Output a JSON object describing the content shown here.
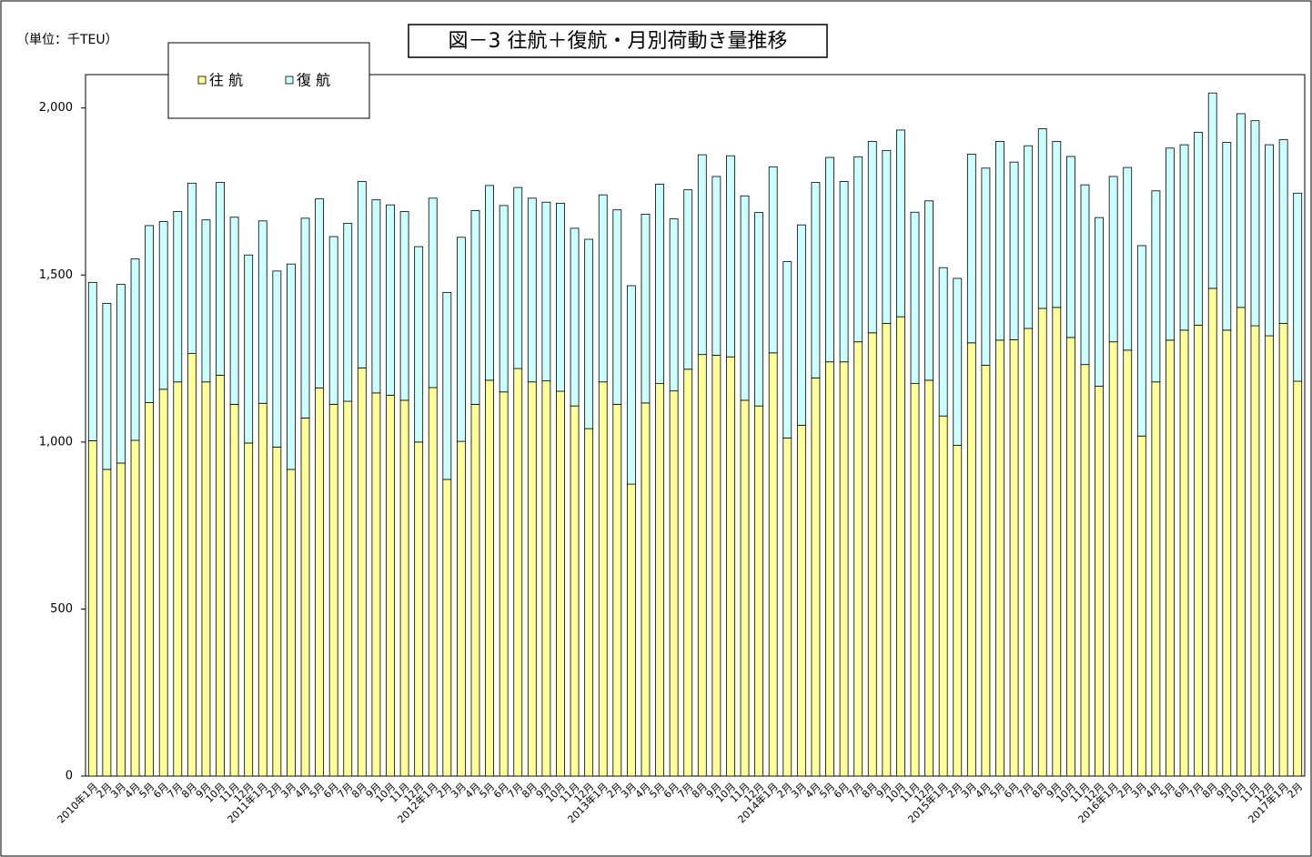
{
  "chart_data": {
    "type": "stacked-bar",
    "title": "図－3  往航＋復航・月別荷動き量推移",
    "unit_label": "（単位：千TEU）",
    "categories": [
      "2010年1月",
      "2月",
      "3月",
      "4月",
      "5月",
      "6月",
      "7月",
      "8月",
      "9月",
      "10月",
      "11月",
      "12月",
      "2011年1月",
      "2月",
      "3月",
      "4月",
      "5月",
      "6月",
      "7月",
      "8月",
      "9月",
      "10月",
      "11月",
      "12月",
      "2012年1月",
      "2月",
      "3月",
      "4月",
      "5月",
      "6月",
      "7月",
      "8月",
      "9月",
      "10月",
      "11月",
      "12月",
      "2013年1月",
      "2月",
      "3月",
      "4月",
      "5月",
      "6月",
      "7月",
      "8月",
      "9月",
      "10月",
      "11月",
      "12月",
      "2014年1月",
      "2月",
      "3月",
      "4月",
      "5月",
      "6月",
      "7月",
      "8月",
      "9月",
      "10月",
      "11月",
      "12月",
      "2015年1月",
      "2月",
      "3月",
      "4月",
      "5月",
      "6月",
      "7月",
      "8月",
      "9月",
      "10月",
      "11月",
      "12月",
      "2016年1月",
      "2月",
      "3月",
      "4月",
      "5月",
      "6月",
      "7月",
      "8月",
      "9月",
      "10月",
      "11月",
      "12月",
      "2017年1月",
      "2月"
    ],
    "series": [
      {
        "name": "往 航",
        "color": "#ffff99",
        "values": [
          1004,
          918,
          937,
          1005,
          1118,
          1158,
          1180,
          1265,
          1180,
          1200,
          1113,
          997,
          1116,
          985,
          918,
          1072,
          1162,
          1113,
          1122,
          1222,
          1147,
          1140,
          1125,
          1000,
          1163,
          888,
          1002,
          1113,
          1185,
          1150,
          1220,
          1180,
          1183,
          1152,
          1108,
          1040,
          1180,
          1113,
          874,
          1117,
          1175,
          1153,
          1218,
          1262,
          1260,
          1255,
          1125,
          1108,
          1267,
          1012,
          1050,
          1192,
          1240,
          1240,
          1300,
          1327,
          1355,
          1375,
          1175,
          1185,
          1078,
          990,
          1297,
          1230,
          1305,
          1306,
          1340,
          1400,
          1403,
          1313,
          1232,
          1167,
          1300,
          1275,
          1018,
          1180,
          1305,
          1335,
          1350,
          1460,
          1335,
          1403,
          1348,
          1318,
          1355,
          1182
        ]
      },
      {
        "name": "復 航",
        "color": "#ccffff",
        "values": [
          474,
          497,
          535,
          543,
          530,
          502,
          510,
          510,
          485,
          577,
          560,
          563,
          546,
          527,
          615,
          598,
          566,
          502,
          533,
          558,
          578,
          570,
          565,
          585,
          567,
          560,
          611,
          580,
          583,
          558,
          542,
          550,
          535,
          563,
          532,
          567,
          560,
          582,
          594,
          565,
          597,
          515,
          537,
          598,
          535,
          602,
          612,
          579,
          557,
          528,
          600,
          585,
          612,
          540,
          554,
          573,
          518,
          559,
          513,
          537,
          444,
          500,
          565,
          590,
          595,
          532,
          547,
          538,
          497,
          542,
          538,
          505,
          495,
          547,
          570,
          572,
          575,
          555,
          577,
          585,
          562,
          580,
          614,
          572,
          550,
          563
        ]
      }
    ],
    "ylim": [
      0,
      2100
    ],
    "yticks": [
      0,
      500,
      {
        "value": 1000,
        "label": "1,000"
      },
      {
        "value": 1500,
        "label": "1,500"
      },
      {
        "value": 2000,
        "label": "2,000"
      }
    ]
  }
}
